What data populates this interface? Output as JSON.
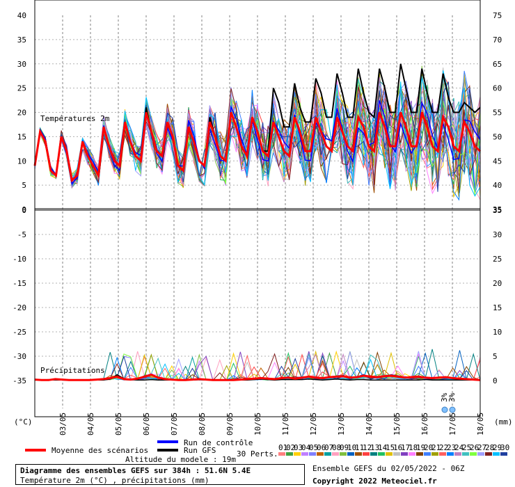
{
  "chart_data": {
    "type": "line",
    "panels": [
      {
        "label": "Températures 2m",
        "left_axis": [
          0,
          5,
          10,
          15,
          20,
          25,
          30,
          35,
          40
        ],
        "right_axis": [
          35,
          40,
          45,
          50,
          55,
          60,
          65,
          70,
          75
        ]
      },
      {
        "label": "Précipitations",
        "left_axis": [
          -35,
          -30,
          -25,
          -20,
          -15,
          -10,
          -5,
          0
        ],
        "right_axis": [
          0,
          5,
          10,
          15,
          20,
          25,
          30,
          35
        ]
      }
    ],
    "left_unit": "(°C)",
    "right_unit": "(mm)",
    "x_labels": [
      "03/05",
      "04/05",
      "05/05",
      "06/05",
      "07/05",
      "08/05",
      "09/05",
      "10/05",
      "11/05",
      "12/05",
      "13/05",
      "14/05",
      "15/05",
      "16/05",
      "17/05",
      "18/05"
    ],
    "temp_mean": [
      9,
      16,
      14,
      8,
      7,
      15,
      12,
      6,
      7,
      14,
      11,
      9,
      7,
      17,
      13,
      10,
      9,
      18,
      14,
      11,
      10,
      20,
      16,
      12,
      11,
      18,
      15,
      9,
      8,
      17,
      14,
      10,
      9,
      18,
      15,
      11,
      10,
      20,
      17,
      13,
      11,
      19,
      16,
      12,
      11,
      18,
      15,
      12,
      11,
      19,
      16,
      12,
      12,
      19,
      16,
      13,
      12,
      19,
      16,
      13,
      12,
      19,
      17,
      13,
      12,
      20,
      17,
      13,
      13,
      20,
      17,
      13,
      13,
      20,
      17,
      13,
      12,
      19,
      17,
      13,
      12,
      18,
      16,
      13,
      12
    ],
    "temp_gfs": [
      9,
      16,
      14,
      8,
      7,
      15,
      12,
      6,
      7,
      14,
      11,
      9,
      7,
      17,
      13,
      10,
      9,
      18,
      14,
      11,
      10,
      21,
      16,
      12,
      11,
      18,
      15,
      9,
      8,
      17,
      14,
      10,
      9,
      19,
      15,
      11,
      10,
      20,
      17,
      13,
      11,
      19,
      16,
      12,
      12,
      25,
      22,
      17,
      17,
      26,
      21,
      18,
      18,
      27,
      24,
      19,
      19,
      28,
      24,
      19,
      19,
      29,
      24,
      20,
      19,
      29,
      25,
      20,
      20,
      30,
      25,
      20,
      20,
      29,
      24,
      20,
      20,
      28,
      23,
      20,
      20,
      22,
      21,
      20,
      21
    ],
    "precip_mean": [
      0.2,
      0.1,
      0.1,
      0.3,
      0.2,
      0.1,
      0.1,
      0.1,
      0.1,
      0.2,
      0.3,
      0.5,
      0.8,
      0.3,
      0.2,
      0.4,
      0.8,
      1.2,
      0.6,
      0.3,
      0.2,
      0.1,
      0.1,
      0.2,
      0.3,
      0.2,
      0.1,
      0.1,
      0.1,
      0.1,
      0.2,
      0.3,
      0.4,
      0.5,
      0.4,
      0.3,
      0.5,
      0.6,
      0.4,
      0.6,
      0.8,
      0.6,
      0.5,
      0.7,
      0.8,
      0.9,
      0.6,
      0.7,
      1.0,
      0.8,
      0.7,
      0.9,
      1.0,
      0.8,
      0.6,
      0.7,
      0.8,
      0.6,
      0.5,
      0.6,
      0.7,
      0.5,
      0.4,
      0.3,
      0.2,
      0.1
    ],
    "precip_gfs": [
      0.1,
      0.1,
      0.2,
      0.1,
      0.1,
      0.1,
      0.1,
      0.1,
      0.1,
      0.1,
      0.1,
      0.3,
      1.2,
      0.4,
      0.2,
      0.1,
      0.1,
      0.2,
      0.1,
      0.1,
      0.1,
      0.1,
      0.1,
      0.1,
      0.2,
      0.1,
      0.1,
      0.1,
      0.1,
      0.1,
      0.1,
      0.1,
      0.2,
      0.3,
      0.2,
      0.1,
      0.2,
      0.2,
      0.2,
      0.2,
      0.3,
      0.2,
      0.1,
      0.2,
      0.3,
      0.2,
      0.1,
      0.2,
      0.2,
      0.1,
      0.1,
      0.1,
      0.1,
      0.1,
      0.1,
      0.1,
      0.1,
      0.2,
      0.1,
      0.1,
      0.1,
      0.1,
      0.1,
      0.1,
      0.1,
      0.1
    ]
  },
  "legend": {
    "mean_label": "Moyenne des scénarios",
    "control_label": "Run de contrôle",
    "gfs_label": "Run GFS",
    "perts_label": "30 Perts.",
    "altitude": "Altitude du modele : 19m",
    "member_numbers": [
      "01",
      "02",
      "03",
      "04",
      "05",
      "06",
      "07",
      "08",
      "09",
      "10",
      "11",
      "12",
      "13",
      "14",
      "15",
      "16",
      "17",
      "18",
      "19",
      "20",
      "21",
      "22",
      "23",
      "24",
      "25",
      "26",
      "27",
      "28",
      "29",
      "30"
    ],
    "member_colors": [
      "#ff8080",
      "#40a040",
      "#ffd000",
      "#c080ff",
      "#8080ff",
      "#c06000",
      "#00a0a0",
      "#ffa0c0",
      "#80c040",
      "#0060c0",
      "#a05000",
      "#ff4040",
      "#008080",
      "#20c060",
      "#e0c000",
      "#c0c0c0",
      "#8040c0",
      "#ff80ff",
      "#804000",
      "#4080ff",
      "#a0a000",
      "#ff6060",
      "#0080ff",
      "#c080c0",
      "#40c0c0",
      "#80ff40",
      "#a0a0ff",
      "#802020",
      "#00c0ff",
      "#2040a0"
    ],
    "mean_color": "#ff0000",
    "control_color": "#0000ff",
    "gfs_color": "#000000"
  },
  "snow_labels": [
    "3%",
    "3%"
  ],
  "footer": {
    "title": "Diagramme des ensembles GEFS sur 384h : 51.6N 5.4E",
    "subtitle": "Température 2m (°C) , précipitations (mm)",
    "run": "Ensemble GEFS du 02/05/2022 - 06Z",
    "copyright": "Copyright 2022 Meteociel.fr"
  }
}
